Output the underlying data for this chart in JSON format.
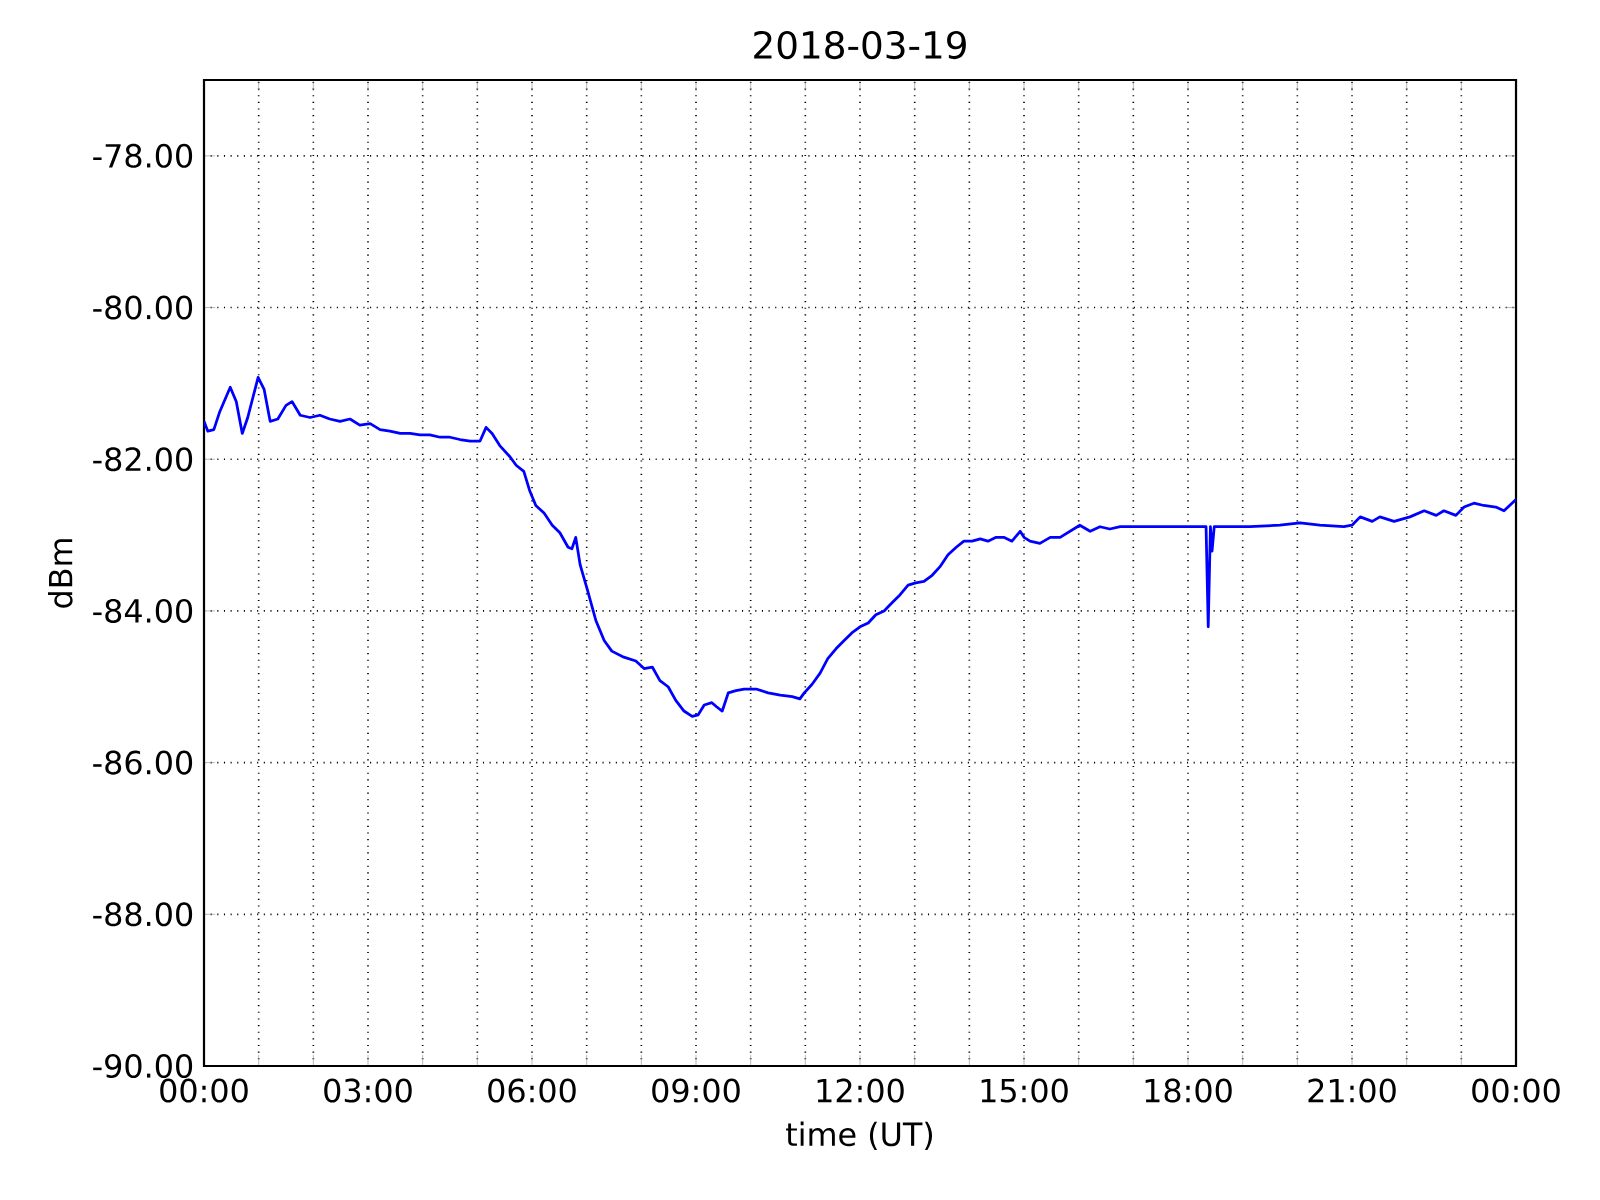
{
  "chart_data": {
    "type": "line",
    "title": "2018-03-19",
    "xlabel": "time (UT)",
    "ylabel": "dBm",
    "xlim": [
      0,
      24
    ],
    "ylim": [
      -90,
      -77
    ],
    "xticks": [
      {
        "value": 0,
        "label": "00:00"
      },
      {
        "value": 1,
        "label": null
      },
      {
        "value": 2,
        "label": null
      },
      {
        "value": 3,
        "label": "03:00"
      },
      {
        "value": 4,
        "label": null
      },
      {
        "value": 5,
        "label": null
      },
      {
        "value": 6,
        "label": "06:00"
      },
      {
        "value": 7,
        "label": null
      },
      {
        "value": 8,
        "label": null
      },
      {
        "value": 9,
        "label": "09:00"
      },
      {
        "value": 10,
        "label": null
      },
      {
        "value": 11,
        "label": null
      },
      {
        "value": 12,
        "label": "12:00"
      },
      {
        "value": 13,
        "label": null
      },
      {
        "value": 14,
        "label": null
      },
      {
        "value": 15,
        "label": "15:00"
      },
      {
        "value": 16,
        "label": null
      },
      {
        "value": 17,
        "label": null
      },
      {
        "value": 18,
        "label": "18:00"
      },
      {
        "value": 19,
        "label": null
      },
      {
        "value": 20,
        "label": null
      },
      {
        "value": 21,
        "label": "21:00"
      },
      {
        "value": 22,
        "label": null
      },
      {
        "value": 23,
        "label": null
      },
      {
        "value": 24,
        "label": "00:00"
      }
    ],
    "yticks": [
      {
        "value": -90,
        "label": "-90.00"
      },
      {
        "value": -88,
        "label": "-88.00"
      },
      {
        "value": -86,
        "label": "-86.00"
      },
      {
        "value": -84,
        "label": "-84.00"
      },
      {
        "value": -82,
        "label": "-82.00"
      },
      {
        "value": -80,
        "label": "-80.00"
      },
      {
        "value": -78,
        "label": "-78.00"
      }
    ],
    "grid": true,
    "marker": "none",
    "line_style": "solid",
    "series": [
      {
        "color": "#0000ff",
        "x": [
          0.0,
          0.07,
          0.18,
          0.29,
          0.48,
          0.59,
          0.7,
          0.8,
          0.99,
          1.1,
          1.21,
          1.35,
          1.5,
          1.61,
          1.76,
          1.94,
          2.12,
          2.3,
          2.49,
          2.67,
          2.85,
          3.04,
          3.22,
          3.4,
          3.59,
          3.77,
          3.95,
          4.13,
          4.32,
          4.5,
          4.68,
          4.87,
          5.05,
          5.16,
          5.27,
          5.41,
          5.6,
          5.71,
          5.85,
          5.96,
          6.07,
          6.22,
          6.37,
          6.51,
          6.66,
          6.73,
          6.8,
          6.88,
          7.02,
          7.17,
          7.32,
          7.46,
          7.68,
          7.9,
          8.05,
          8.2,
          8.34,
          8.49,
          8.63,
          8.78,
          8.93,
          9.04,
          9.15,
          9.29,
          9.37,
          9.48,
          9.59,
          9.73,
          9.88,
          10.1,
          10.32,
          10.54,
          10.76,
          10.9,
          10.98,
          11.12,
          11.27,
          11.41,
          11.56,
          11.71,
          11.85,
          12.0,
          12.15,
          12.29,
          12.44,
          12.59,
          12.73,
          12.88,
          13.02,
          13.17,
          13.32,
          13.46,
          13.61,
          13.76,
          13.9,
          14.05,
          14.2,
          14.34,
          14.49,
          14.63,
          14.78,
          14.93,
          15.0,
          15.11,
          15.29,
          15.48,
          15.66,
          15.84,
          16.02,
          16.21,
          16.39,
          16.57,
          16.76,
          17.12,
          17.49,
          17.85,
          18.22,
          18.33,
          18.37,
          18.41,
          18.44,
          18.48,
          18.77,
          19.13,
          19.68,
          20.05,
          20.41,
          20.85,
          21.0,
          21.15,
          21.37,
          21.51,
          21.77,
          22.06,
          22.32,
          22.54,
          22.68,
          22.9,
          23.05,
          23.23,
          23.41,
          23.63,
          23.78,
          24.0
        ],
        "values": [
          -81.5,
          -81.63,
          -81.61,
          -81.37,
          -81.05,
          -81.24,
          -81.66,
          -81.45,
          -80.92,
          -81.08,
          -81.5,
          -81.47,
          -81.29,
          -81.24,
          -81.42,
          -81.45,
          -81.42,
          -81.47,
          -81.5,
          -81.47,
          -81.55,
          -81.53,
          -81.61,
          -81.63,
          -81.66,
          -81.66,
          -81.68,
          -81.68,
          -81.71,
          -81.71,
          -81.74,
          -81.76,
          -81.76,
          -81.58,
          -81.66,
          -81.82,
          -81.97,
          -82.08,
          -82.16,
          -82.42,
          -82.61,
          -82.71,
          -82.87,
          -82.97,
          -83.16,
          -83.18,
          -83.03,
          -83.39,
          -83.74,
          -84.13,
          -84.39,
          -84.53,
          -84.61,
          -84.66,
          -84.76,
          -84.74,
          -84.92,
          -85.0,
          -85.18,
          -85.32,
          -85.39,
          -85.37,
          -85.24,
          -85.21,
          -85.26,
          -85.32,
          -85.08,
          -85.05,
          -85.03,
          -85.03,
          -85.08,
          -85.11,
          -85.13,
          -85.16,
          -85.08,
          -84.97,
          -84.82,
          -84.63,
          -84.5,
          -84.39,
          -84.29,
          -84.21,
          -84.16,
          -84.05,
          -84.0,
          -83.89,
          -83.79,
          -83.66,
          -83.63,
          -83.61,
          -83.53,
          -83.42,
          -83.26,
          -83.16,
          -83.08,
          -83.08,
          -83.05,
          -83.08,
          -83.03,
          -83.03,
          -83.08,
          -82.95,
          -83.03,
          -83.08,
          -83.11,
          -83.03,
          -83.03,
          -82.95,
          -82.87,
          -82.95,
          -82.89,
          -82.92,
          -82.89,
          -82.89,
          -82.89,
          -82.89,
          -82.89,
          -82.89,
          -84.21,
          -82.89,
          -83.21,
          -82.89,
          -82.89,
          -82.89,
          -82.87,
          -82.84,
          -82.87,
          -82.89,
          -82.87,
          -82.76,
          -82.82,
          -82.76,
          -82.82,
          -82.76,
          -82.68,
          -82.74,
          -82.68,
          -82.74,
          -82.63,
          -82.58,
          -82.61,
          -82.63,
          -82.68,
          -82.53
        ]
      }
    ]
  }
}
